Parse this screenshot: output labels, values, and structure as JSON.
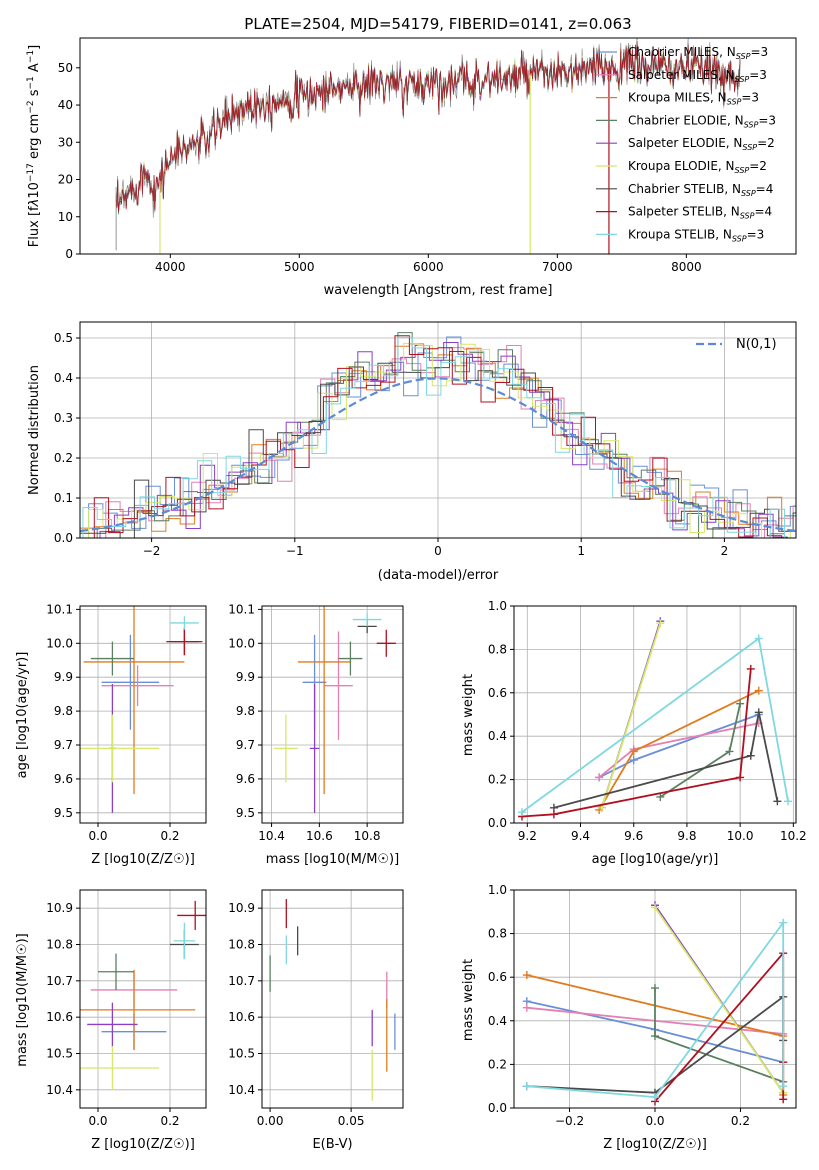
{
  "title": "PLATE=2504, MJD=54179, FIBERID=0141, z=0.063",
  "colors": {
    "blue": "#6a8fd8",
    "pink": "#e57fb4",
    "orange": "#e07b1f",
    "green": "#5a8060",
    "purple": "#8b3fc4",
    "yellow": "#d4e86a",
    "dark": "#4a4a4a",
    "red": "#b01020",
    "cyan": "#7fd8e0",
    "gray": "#7a7a7a"
  },
  "chart_data": [
    {
      "id": "spectrum",
      "type": "line",
      "title": "PLATE=2504, MJD=54179, FIBERID=0141, z=0.063",
      "xlabel": "wavelength [Angstrom, rest frame]",
      "ylabel": "Flux [fλ10^-17 erg cm^-2 s^-1 A^-1]",
      "xlim": [
        3300,
        8850
      ],
      "ylim": [
        0,
        58
      ],
      "xticks": [
        "4000",
        "5000",
        "6000",
        "7000",
        "8000"
      ],
      "yticks": [
        "0",
        "10",
        "20",
        "30",
        "40",
        "50"
      ],
      "legend": [
        {
          "label": "Chabrier MILES, N_SSP=3",
          "color": "#6a8fd8"
        },
        {
          "label": "Salpeter MILES, N_SSP=3",
          "color": "#e57fb4"
        },
        {
          "label": "Kroupa MILES, N_SSP=3",
          "color": "#e07b1f"
        },
        {
          "label": "Chabrier ELODIE, N_SSP=3",
          "color": "#5a8060"
        },
        {
          "label": "Salpeter ELODIE, N_SSP=2",
          "color": "#8b3fc4"
        },
        {
          "label": "Kroupa ELODIE, N_SSP=2",
          "color": "#d4e86a"
        },
        {
          "label": "Chabrier STELIB, N_SSP=4",
          "color": "#4a4a4a"
        },
        {
          "label": "Salpeter STELIB, N_SSP=4",
          "color": "#b01020"
        },
        {
          "label": "Kroupa STELIB, N_SSP=3",
          "color": "#7fd8e0"
        }
      ],
      "continuum": {
        "x": [
          3580,
          3700,
          3800,
          3900,
          4000,
          4100,
          4200,
          4300,
          4400,
          4500,
          4600,
          4800,
          5000,
          5200,
          5400,
          5600,
          5800,
          6000,
          6200,
          6400,
          6600,
          6800,
          7000,
          7200,
          7400,
          7600,
          7800,
          8000,
          8200,
          8400
        ],
        "y": [
          12,
          17,
          22,
          18,
          26,
          28,
          30,
          31,
          35,
          38,
          40,
          41,
          42,
          44,
          45,
          46,
          45,
          46,
          46,
          47,
          47,
          48,
          48,
          49,
          50,
          51,
          50,
          50,
          49,
          48
        ]
      }
    },
    {
      "id": "residual-hist",
      "type": "histogram",
      "xlabel": "(data-model)/error",
      "ylabel": "Normed distribution",
      "xlim": [
        -2.5,
        2.5
      ],
      "ylim": [
        0,
        0.54
      ],
      "xticks": [
        "−2",
        "−1",
        "0",
        "1",
        "2"
      ],
      "yticks": [
        "0.0",
        "0.1",
        "0.2",
        "0.3",
        "0.4",
        "0.5"
      ],
      "legend": "N(0,1)",
      "legend_loc": "top-right",
      "bin_width": 0.1,
      "grid": true
    },
    {
      "id": "z-age",
      "type": "errorbar",
      "xlabel": "Z [log10(Z/Z☉)]",
      "ylabel": "age  [log10(age/yr)]",
      "xlim": [
        -0.05,
        0.3
      ],
      "ylim": [
        9.47,
        10.11
      ],
      "xticks": [
        "0.0",
        "0.2"
      ],
      "yticks": [
        "9.5",
        "9.6",
        "9.7",
        "9.8",
        "9.9",
        "10.0",
        "10.1"
      ],
      "points": [
        {
          "c": "blue",
          "x": 0.09,
          "y": 9.885,
          "xe": 0.08,
          "ye": 0.14
        },
        {
          "c": "pink",
          "x": 0.11,
          "y": 9.875,
          "xe": 0.1,
          "ye": 0.06
        },
        {
          "c": "orange",
          "x": 0.1,
          "y": 9.945,
          "xe": 0.14,
          "ye": 0.39
        },
        {
          "c": "green",
          "x": 0.04,
          "y": 9.955,
          "xe": 0.06,
          "ye": 0.05
        },
        {
          "c": "purple",
          "x": 0.04,
          "y": 9.69,
          "xe": 0.01,
          "ye": 0.19
        },
        {
          "c": "yellow",
          "x": 0.04,
          "y": 9.69,
          "xe": 0.13,
          "ye": 0.1
        },
        {
          "c": "dark",
          "x": 0.24,
          "y": 10.005,
          "xe": 0.04,
          "ye": 0.04
        },
        {
          "c": "red",
          "x": 0.24,
          "y": 10.005,
          "xe": 0.05,
          "ye": 0.04
        },
        {
          "c": "cyan",
          "x": 0.24,
          "y": 10.06,
          "xe": 0.04,
          "ye": 0.02
        }
      ]
    },
    {
      "id": "mass-age",
      "type": "errorbar",
      "xlabel": "mass [log10(M/M☉)]",
      "ylabel": "",
      "xlim": [
        10.36,
        10.95
      ],
      "ylim": [
        9.47,
        10.11
      ],
      "xticks": [
        "10.4",
        "10.6",
        "10.8"
      ],
      "yticks": [
        "9.5",
        "9.6",
        "9.7",
        "9.8",
        "9.9",
        "10.0",
        "10.1"
      ],
      "points": [
        {
          "c": "blue",
          "x": 10.58,
          "y": 9.885,
          "xe": 0.05,
          "ye": 0.14
        },
        {
          "c": "pink",
          "x": 10.68,
          "y": 9.875,
          "xe": 0.06,
          "ye": 0.16
        },
        {
          "c": "orange",
          "x": 10.62,
          "y": 9.945,
          "xe": 0.11,
          "ye": 0.39
        },
        {
          "c": "green",
          "x": 10.73,
          "y": 9.955,
          "xe": 0.05,
          "ye": 0.05
        },
        {
          "c": "purple",
          "x": 10.58,
          "y": 9.69,
          "xe": 0.02,
          "ye": 0.19
        },
        {
          "c": "yellow",
          "x": 10.46,
          "y": 9.69,
          "xe": 0.05,
          "ye": 0.1
        },
        {
          "c": "dark",
          "x": 10.8,
          "y": 10.05,
          "xe": 0.04,
          "ye": 0.02
        },
        {
          "c": "red",
          "x": 10.88,
          "y": 10.0,
          "xe": 0.04,
          "ye": 0.04
        },
        {
          "c": "cyan",
          "x": 10.8,
          "y": 10.07,
          "xe": 0.06,
          "ye": 0.02
        }
      ]
    },
    {
      "id": "age-massweight",
      "type": "line",
      "xlabel": "age  [log10(age/yr)]",
      "ylabel": "mass weight",
      "xlim": [
        9.15,
        10.21
      ],
      "ylim": [
        0,
        1.0
      ],
      "xticks": [
        "9.2",
        "9.4",
        "9.6",
        "9.8",
        "10.0",
        "10.2"
      ],
      "yticks": [
        "0.0",
        "0.2",
        "0.4",
        "0.6",
        "0.8",
        "1.0"
      ],
      "series": [
        {
          "c": "blue",
          "x": [
            9.47,
            9.6,
            10.07
          ],
          "y": [
            0.21,
            0.29,
            0.5
          ]
        },
        {
          "c": "pink",
          "x": [
            9.47,
            9.6,
            10.07
          ],
          "y": [
            0.21,
            0.34,
            0.46
          ]
        },
        {
          "c": "orange",
          "x": [
            9.47,
            9.6,
            10.07
          ],
          "y": [
            0.06,
            0.33,
            0.61
          ]
        },
        {
          "c": "green",
          "x": [
            9.7,
            9.96,
            10.0
          ],
          "y": [
            0.12,
            0.33,
            0.55
          ]
        },
        {
          "c": "purple",
          "x": [
            9.48,
            9.7
          ],
          "y": [
            0.07,
            0.93
          ]
        },
        {
          "c": "yellow",
          "x": [
            9.48,
            9.7
          ],
          "y": [
            0.07,
            0.92
          ]
        },
        {
          "c": "dark",
          "x": [
            9.3,
            10.04,
            10.07,
            10.14
          ],
          "y": [
            0.07,
            0.31,
            0.51,
            0.1
          ]
        },
        {
          "c": "red",
          "x": [
            9.18,
            9.3,
            10.0,
            10.04
          ],
          "y": [
            0.03,
            0.04,
            0.21,
            0.71
          ]
        },
        {
          "c": "cyan",
          "x": [
            9.18,
            10.07,
            10.18
          ],
          "y": [
            0.05,
            0.85,
            0.1
          ]
        }
      ]
    },
    {
      "id": "z-mass",
      "type": "errorbar",
      "xlabel": "Z [log10(Z/Z☉)]",
      "ylabel": "mass [log10(M/M☉)]",
      "xlim": [
        -0.05,
        0.3
      ],
      "ylim": [
        10.35,
        10.95
      ],
      "xticks": [
        "0.0",
        "0.2"
      ],
      "yticks": [
        "10.4",
        "10.5",
        "10.6",
        "10.7",
        "10.8",
        "10.9"
      ],
      "points": [
        {
          "c": "blue",
          "x": 0.1,
          "y": 10.56,
          "xe": 0.09,
          "ye": 0.05
        },
        {
          "c": "pink",
          "x": 0.1,
          "y": 10.675,
          "xe": 0.12,
          "ye": 0.05
        },
        {
          "c": "orange",
          "x": 0.1,
          "y": 10.62,
          "xe": 0.17,
          "ye": 0.11
        },
        {
          "c": "green",
          "x": 0.05,
          "y": 10.725,
          "xe": 0.05,
          "ye": 0.05
        },
        {
          "c": "purple",
          "x": 0.04,
          "y": 10.58,
          "xe": 0.07,
          "ye": 0.06
        },
        {
          "c": "yellow",
          "x": 0.04,
          "y": 10.46,
          "xe": 0.13,
          "ye": 0.06
        },
        {
          "c": "dark",
          "x": 0.24,
          "y": 10.8,
          "xe": 0.04,
          "ye": 0.04
        },
        {
          "c": "red",
          "x": 0.27,
          "y": 10.88,
          "xe": 0.05,
          "ye": 0.04
        },
        {
          "c": "cyan",
          "x": 0.24,
          "y": 10.81,
          "xe": 0.03,
          "ye": 0.05
        }
      ]
    },
    {
      "id": "ebv-mass",
      "type": "errorbar",
      "xlabel": "E(B-V)",
      "ylabel": "",
      "xlim": [
        -0.005,
        0.082
      ],
      "ylim": [
        10.35,
        10.95
      ],
      "xticks": [
        "0.00",
        "0.05"
      ],
      "yticks": [
        "10.4",
        "10.5",
        "10.6",
        "10.7",
        "10.8",
        "10.9"
      ],
      "points": [
        {
          "c": "blue",
          "x": 0.077,
          "y": 10.56,
          "ye": 0.05
        },
        {
          "c": "pink",
          "x": 0.072,
          "y": 10.675,
          "ye": 0.05
        },
        {
          "c": "orange",
          "x": 0.072,
          "y": 10.55,
          "ye": 0.1
        },
        {
          "c": "green",
          "x": 0.0,
          "y": 10.72,
          "ye": 0.05
        },
        {
          "c": "purple",
          "x": 0.063,
          "y": 10.57,
          "ye": 0.05
        },
        {
          "c": "yellow",
          "x": 0.063,
          "y": 10.44,
          "ye": 0.07
        },
        {
          "c": "dark",
          "x": 0.017,
          "y": 10.81,
          "ye": 0.04
        },
        {
          "c": "red",
          "x": 0.01,
          "y": 10.885,
          "ye": 0.04
        },
        {
          "c": "cyan",
          "x": 0.01,
          "y": 10.785,
          "ye": 0.04
        }
      ]
    },
    {
      "id": "z-massweight",
      "type": "line",
      "xlabel": "Z [log10(Z/Z☉)]",
      "ylabel": "mass weight",
      "xlim": [
        -0.33,
        0.33
      ],
      "ylim": [
        0,
        1.0
      ],
      "xticks": [
        "−0.2",
        "0.0",
        "0.2"
      ],
      "yticks": [
        "0.0",
        "0.2",
        "0.4",
        "0.6",
        "0.8",
        "1.0"
      ],
      "series": [
        {
          "c": "blue",
          "x": [
            -0.3,
            0.0,
            0.3
          ],
          "y": [
            0.49,
            0.36,
            0.21
          ]
        },
        {
          "c": "pink",
          "x": [
            -0.3,
            0.3
          ],
          "y": [
            0.46,
            0.34
          ]
        },
        {
          "c": "orange",
          "x": [
            -0.3,
            0.3,
            0.3
          ],
          "y": [
            0.61,
            0.33,
            0.06
          ]
        },
        {
          "c": "green",
          "x": [
            0.0,
            0.0,
            0.3
          ],
          "y": [
            0.55,
            0.33,
            0.12
          ]
        },
        {
          "c": "purple",
          "x": [
            0.0,
            0.3
          ],
          "y": [
            0.93,
            0.07
          ]
        },
        {
          "c": "yellow",
          "x": [
            0.0,
            0.3
          ],
          "y": [
            0.92,
            0.07
          ]
        },
        {
          "c": "dark",
          "x": [
            -0.3,
            0.0,
            0.3,
            0.3
          ],
          "y": [
            0.1,
            0.07,
            0.51,
            0.31
          ]
        },
        {
          "c": "red",
          "x": [
            0.0,
            0.3,
            0.3,
            0.3
          ],
          "y": [
            0.03,
            0.71,
            0.21,
            0.04
          ]
        },
        {
          "c": "cyan",
          "x": [
            -0.3,
            0.0,
            0.3,
            0.3
          ],
          "y": [
            0.1,
            0.05,
            0.85,
            0.1
          ]
        }
      ]
    }
  ]
}
